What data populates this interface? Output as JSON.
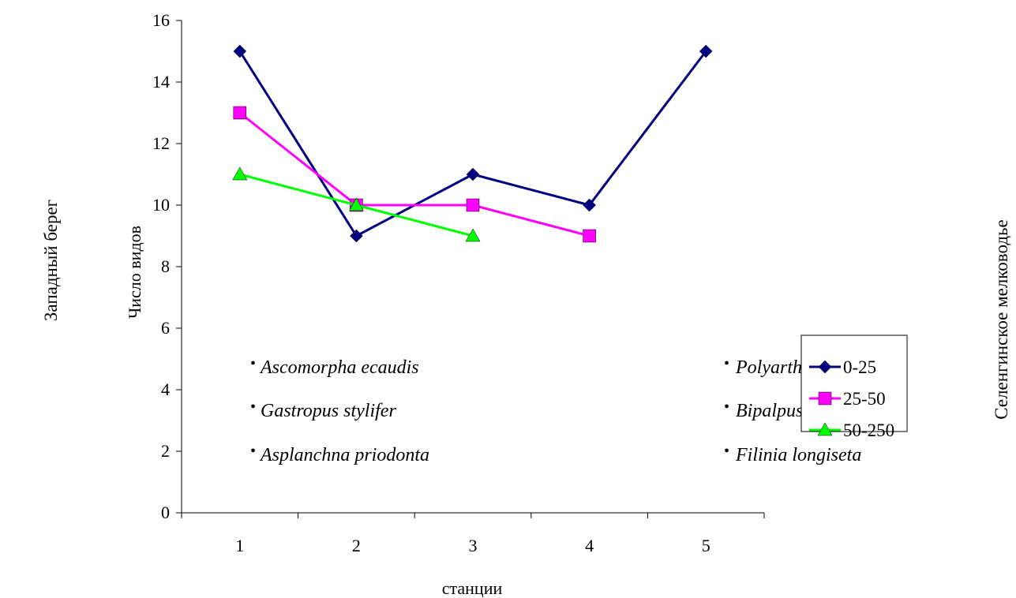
{
  "chart_data": {
    "type": "line",
    "categories": [
      "1",
      "2",
      "3",
      "4",
      "5"
    ],
    "xlabel": "станции",
    "ylabel": "Число видов",
    "ylim": [
      0,
      16
    ],
    "yticks": [
      0,
      2,
      4,
      6,
      8,
      10,
      12,
      14,
      16
    ],
    "grid": false,
    "legend_position": "right",
    "series": [
      {
        "name": "0-25",
        "values": [
          15,
          9,
          11,
          10,
          15
        ],
        "color": "#000080",
        "marker": "diamond"
      },
      {
        "name": "25-50",
        "values": [
          13,
          10,
          10,
          9,
          null
        ],
        "color": "#ff00ff",
        "marker": "square"
      },
      {
        "name": "50-250",
        "values": [
          11,
          10,
          9,
          null,
          null
        ],
        "color": "#00ff00",
        "marker": "triangle"
      }
    ],
    "side_labels": {
      "left": "Западный берег",
      "right": "Селенгинское мелководье"
    },
    "annotations": {
      "left": [
        "Ascomorpha ecaudis",
        "Gastropus stylifer",
        "Asplanchna priodonta"
      ],
      "right": [
        "Polyarthra longiremis",
        "Bipalpus hudzoni",
        "Filinia longiseta"
      ]
    },
    "bullet": "•"
  }
}
